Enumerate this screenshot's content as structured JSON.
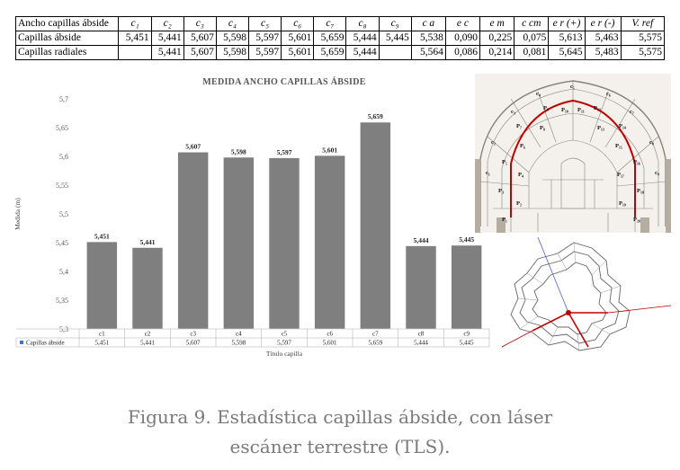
{
  "table": {
    "header": [
      "Ancho capillas ábside",
      "c₁",
      "c₂",
      "c₃",
      "c₄",
      "c₅",
      "c₆",
      "c₇",
      "c₈",
      "c₉",
      "c a",
      "e c",
      "e m",
      "c cm",
      "e r (+)",
      "e r (-)",
      "V. ref"
    ],
    "rows": [
      [
        "Capillas ábside",
        "5,451",
        "5,441",
        "5,607",
        "5,598",
        "5,597",
        "5,601",
        "5,659",
        "5,444",
        "5,445",
        "5,538",
        "0,090",
        "0,225",
        "0,075",
        "5,613",
        "5,463",
        "5,575"
      ],
      [
        "Capillas radiales",
        "",
        "5,441",
        "5,607",
        "5,598",
        "5,597",
        "5,601",
        "5,659",
        "5,444",
        "",
        "5,564",
        "0,086",
        "0,214",
        "0,081",
        "5,645",
        "5,483",
        "5,575"
      ]
    ]
  },
  "chart_data": {
    "type": "bar",
    "title": "MEDIDA ANCHO CAPILLAS ÁBSIDE",
    "xlabel": "Título capilla",
    "ylabel": "Medida (m)",
    "categories": [
      "c1",
      "c2",
      "c3",
      "c4",
      "c5",
      "c6",
      "c7",
      "c8",
      "c9"
    ],
    "series": [
      {
        "name": "Capillas ábside",
        "values": [
          5.451,
          5.441,
          5.607,
          5.598,
          5.597,
          5.601,
          5.659,
          5.444,
          5.445
        ]
      }
    ],
    "value_labels": [
      "5,451",
      "5,441",
      "5,607",
      "5,598",
      "5,597",
      "5,601",
      "5,659",
      "5,444",
      "5,445"
    ],
    "ylim": [
      5.3,
      5.7
    ],
    "yticks": [
      "5,3",
      "5,35",
      "5,4",
      "5,45",
      "5,5",
      "5,55",
      "5,6",
      "5,65",
      "5,7"
    ],
    "grid": false,
    "legend": "data-table",
    "colors": {
      "bar": "#7f7f7f",
      "legend_marker": "#4472c4"
    }
  },
  "drawing": {
    "plan_labels": [
      "c₁",
      "c₂",
      "c₃",
      "c₄",
      "c₅",
      "c₆",
      "c₇",
      "c₈",
      "c₉",
      "P₁",
      "P₂",
      "P₃",
      "P₄",
      "P₅",
      "P₆",
      "P₇",
      "P₈",
      "P₉",
      "P₁₀",
      "P₁₁",
      "P₁₂",
      "P₁₃",
      "P₁₄",
      "P₁₅",
      "P₁₆",
      "P₁₇",
      "P₁₈",
      "P₁₉",
      "P₂₀"
    ],
    "colors": {
      "trace": "#c00000",
      "blue_line": "#4a5fd0"
    }
  },
  "caption": {
    "line1": "Figura 9. Estadística capillas ábside, con láser",
    "line2": "escáner terrestre (TLS)."
  }
}
